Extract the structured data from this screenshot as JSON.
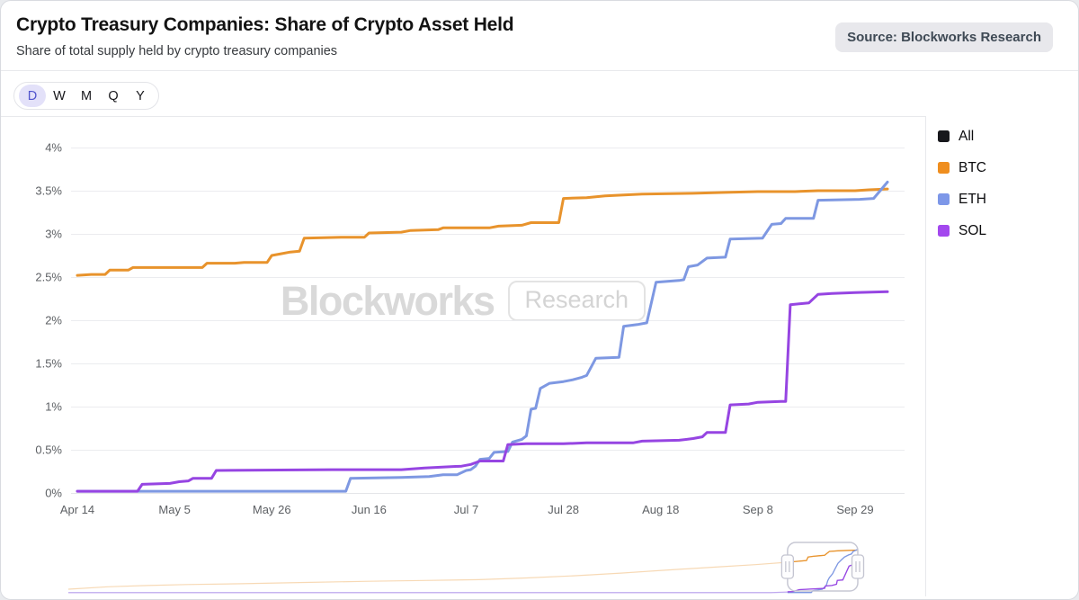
{
  "header": {
    "title": "Crypto Treasury Companies: Share of Crypto Asset Held",
    "subtitle": "Share of total supply held by crypto treasury companies",
    "source_badge": "Source: Blockworks Research"
  },
  "toolbar": {
    "periods": [
      "D",
      "W",
      "M",
      "Q",
      "Y"
    ],
    "selected": "D"
  },
  "legend": {
    "items": [
      {
        "label": "All",
        "color": "#17181c"
      },
      {
        "label": "BTC",
        "color": "#ef8e1f"
      },
      {
        "label": "ETH",
        "color": "#7d97e8"
      },
      {
        "label": "SOL",
        "color": "#a348ee"
      }
    ]
  },
  "watermark": {
    "brand": "Blockworks",
    "tag": "Research"
  },
  "chart_data": {
    "type": "line",
    "title": "Crypto Treasury Companies: Share of Crypto Asset Held",
    "y_unit": "%",
    "ylim": [
      0,
      4
    ],
    "grid": "horizontal",
    "legend_position": "right",
    "y_tick_values": [
      0,
      0.5,
      1,
      1.5,
      2,
      2.5,
      3,
      3.5,
      4
    ],
    "y_tick_labels": [
      "0%",
      "0.5%",
      "1%",
      "1.5%",
      "2%",
      "2.5%",
      "3%",
      "3.5%",
      "4%"
    ],
    "x_tick_labels": [
      "Apr 14",
      "May 5",
      "May 26",
      "Jun 16",
      "Jul 7",
      "Jul 28",
      "Aug 18",
      "Sep 8",
      "Sep 29"
    ],
    "x_tick_days": [
      0,
      21,
      42,
      63,
      84,
      105,
      126,
      147,
      168
    ],
    "x_start_label": "Apr 14",
    "x_days_total": 175,
    "series": [
      {
        "name": "BTC",
        "color": "#e8932c",
        "points": [
          [
            0,
            2.52
          ],
          [
            3,
            2.53
          ],
          [
            6,
            2.53
          ],
          [
            7,
            2.58
          ],
          [
            11,
            2.58
          ],
          [
            12,
            2.61
          ],
          [
            27,
            2.61
          ],
          [
            28,
            2.66
          ],
          [
            34,
            2.66
          ],
          [
            36,
            2.67
          ],
          [
            41,
            2.67
          ],
          [
            42,
            2.75
          ],
          [
            44,
            2.77
          ],
          [
            46,
            2.79
          ],
          [
            48,
            2.8
          ],
          [
            49,
            2.95
          ],
          [
            57,
            2.96
          ],
          [
            62,
            2.96
          ],
          [
            63,
            3.01
          ],
          [
            70,
            3.02
          ],
          [
            72,
            3.04
          ],
          [
            78,
            3.05
          ],
          [
            79,
            3.07
          ],
          [
            89,
            3.07
          ],
          [
            91,
            3.09
          ],
          [
            96,
            3.1
          ],
          [
            98,
            3.13
          ],
          [
            104,
            3.13
          ],
          [
            105,
            3.41
          ],
          [
            110,
            3.42
          ],
          [
            114,
            3.44
          ],
          [
            118,
            3.45
          ],
          [
            122,
            3.46
          ],
          [
            133,
            3.47
          ],
          [
            140,
            3.48
          ],
          [
            147,
            3.49
          ],
          [
            155,
            3.49
          ],
          [
            160,
            3.5
          ],
          [
            168,
            3.5
          ],
          [
            171,
            3.51
          ],
          [
            175,
            3.52
          ]
        ]
      },
      {
        "name": "ETH",
        "color": "#7e98e2",
        "points": [
          [
            0,
            0.02
          ],
          [
            58,
            0.02
          ],
          [
            59,
            0.17
          ],
          [
            70,
            0.18
          ],
          [
            76,
            0.19
          ],
          [
            79,
            0.21
          ],
          [
            82,
            0.21
          ],
          [
            84,
            0.26
          ],
          [
            85,
            0.27
          ],
          [
            86,
            0.31
          ],
          [
            87,
            0.39
          ],
          [
            89,
            0.4
          ],
          [
            90,
            0.47
          ],
          [
            93,
            0.48
          ],
          [
            94,
            0.59
          ],
          [
            96,
            0.62
          ],
          [
            97,
            0.66
          ],
          [
            98,
            0.97
          ],
          [
            99,
            0.98
          ],
          [
            100,
            1.21
          ],
          [
            102,
            1.27
          ],
          [
            105,
            1.29
          ],
          [
            107,
            1.31
          ],
          [
            109,
            1.34
          ],
          [
            110,
            1.36
          ],
          [
            112,
            1.56
          ],
          [
            117,
            1.57
          ],
          [
            118,
            1.93
          ],
          [
            121,
            1.95
          ],
          [
            123,
            1.97
          ],
          [
            125,
            2.44
          ],
          [
            130,
            2.46
          ],
          [
            131,
            2.47
          ],
          [
            132,
            2.62
          ],
          [
            134,
            2.64
          ],
          [
            136,
            2.72
          ],
          [
            140,
            2.73
          ],
          [
            141,
            2.94
          ],
          [
            148,
            2.95
          ],
          [
            150,
            3.11
          ],
          [
            152,
            3.12
          ],
          [
            153,
            3.18
          ],
          [
            159,
            3.18
          ],
          [
            160,
            3.39
          ],
          [
            169,
            3.4
          ],
          [
            172,
            3.41
          ],
          [
            175,
            3.6
          ]
        ]
      },
      {
        "name": "SOL",
        "color": "#9645e2",
        "points": [
          [
            0,
            0.02
          ],
          [
            13,
            0.02
          ],
          [
            14,
            0.1
          ],
          [
            20,
            0.11
          ],
          [
            22,
            0.13
          ],
          [
            24,
            0.14
          ],
          [
            25,
            0.17
          ],
          [
            29,
            0.17
          ],
          [
            30,
            0.26
          ],
          [
            55,
            0.27
          ],
          [
            70,
            0.27
          ],
          [
            75,
            0.29
          ],
          [
            83,
            0.31
          ],
          [
            85,
            0.33
          ],
          [
            86,
            0.35
          ],
          [
            87,
            0.37
          ],
          [
            92,
            0.37
          ],
          [
            93,
            0.56
          ],
          [
            97,
            0.57
          ],
          [
            105,
            0.57
          ],
          [
            110,
            0.58
          ],
          [
            120,
            0.58
          ],
          [
            122,
            0.6
          ],
          [
            130,
            0.61
          ],
          [
            133,
            0.63
          ],
          [
            135,
            0.65
          ],
          [
            136,
            0.7
          ],
          [
            140,
            0.7
          ],
          [
            141,
            1.02
          ],
          [
            145,
            1.03
          ],
          [
            147,
            1.05
          ],
          [
            152,
            1.06
          ],
          [
            153,
            1.06
          ],
          [
            154,
            2.18
          ],
          [
            158,
            2.2
          ],
          [
            160,
            2.3
          ],
          [
            163,
            2.31
          ],
          [
            168,
            2.32
          ],
          [
            175,
            2.33
          ]
        ]
      }
    ]
  },
  "navigator": {
    "window": {
      "from_t": 0.911,
      "to_t": 1.0
    },
    "series": [
      {
        "name": "BTC",
        "color": "#e8932c",
        "points": [
          [
            0,
            0.3
          ],
          [
            0.05,
            0.5
          ],
          [
            0.1,
            0.6
          ],
          [
            0.15,
            0.68
          ],
          [
            0.22,
            0.75
          ],
          [
            0.3,
            0.85
          ],
          [
            0.38,
            0.95
          ],
          [
            0.46,
            1.02
          ],
          [
            0.52,
            1.08
          ],
          [
            0.58,
            1.22
          ],
          [
            0.64,
            1.4
          ],
          [
            0.7,
            1.62
          ],
          [
            0.76,
            1.88
          ],
          [
            0.82,
            2.12
          ],
          [
            0.87,
            2.32
          ],
          [
            0.911,
            2.52
          ],
          [
            0.935,
            2.66
          ],
          [
            0.937,
            2.95
          ],
          [
            0.944,
            3.01
          ],
          [
            0.951,
            3.05
          ],
          [
            0.958,
            3.09
          ],
          [
            0.964,
            3.41
          ],
          [
            0.975,
            3.46
          ],
          [
            0.99,
            3.5
          ],
          [
            1,
            3.52
          ]
        ]
      },
      {
        "name": "ETH",
        "color": "#7e98e2",
        "points": [
          [
            0,
            0.02
          ],
          [
            0.9,
            0.02
          ],
          [
            0.941,
            0.02
          ],
          [
            0.943,
            0.17
          ],
          [
            0.955,
            0.3
          ],
          [
            0.96,
            0.6
          ],
          [
            0.962,
            1.0
          ],
          [
            0.964,
            1.25
          ],
          [
            0.968,
            1.56
          ],
          [
            0.971,
            1.95
          ],
          [
            0.975,
            2.44
          ],
          [
            0.979,
            2.7
          ],
          [
            0.983,
            2.94
          ],
          [
            0.988,
            3.11
          ],
          [
            0.992,
            3.2
          ],
          [
            0.994,
            3.4
          ],
          [
            1,
            3.58
          ]
        ]
      },
      {
        "name": "SOL",
        "color": "#9645e2",
        "points": [
          [
            0,
            0.01
          ],
          [
            0.89,
            0.01
          ],
          [
            0.918,
            0.1
          ],
          [
            0.926,
            0.26
          ],
          [
            0.958,
            0.37
          ],
          [
            0.959,
            0.56
          ],
          [
            0.967,
            0.6
          ],
          [
            0.973,
            0.7
          ],
          [
            0.974,
            1.02
          ],
          [
            0.981,
            1.06
          ],
          [
            0.989,
            2.2
          ],
          [
            0.993,
            2.3
          ],
          [
            1,
            2.32
          ]
        ]
      }
    ]
  }
}
